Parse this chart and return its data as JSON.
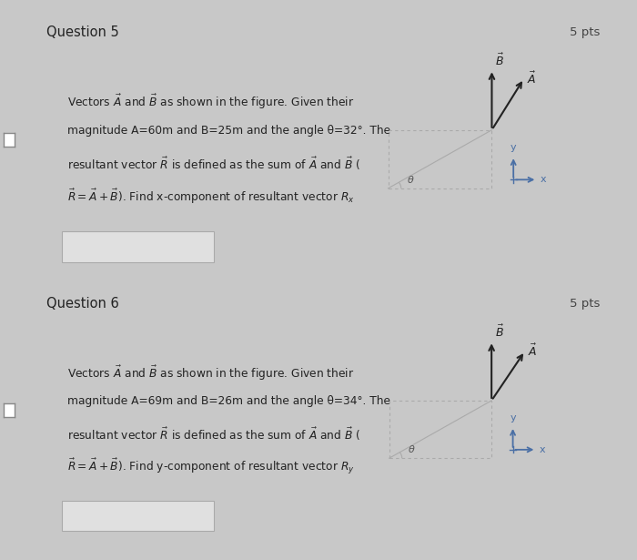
{
  "bg_color": "#c8c8c8",
  "card_bg": "#e8e8e8",
  "title_bg": "#d8d8d8",
  "white_bg": "#f5f5f5",
  "ans_box_bg": "#e0e0e0",
  "vec_color": "#222222",
  "axis_color": "#4a6fa5",
  "dash_color": "#aaaaaa",
  "q1": {
    "title": "Question 5",
    "pts": "5 pts",
    "lines": [
      "Vectors $\\vec{A}$ and $\\vec{B}$ as shown in the figure. Given their",
      "magnitude A=60m and B=25m and the angle θ=32°. The",
      "resultant vector $\\vec{R}$ is defined as the sum of $\\vec{A}$ and $\\vec{B}$ (",
      "$\\vec{R} = \\vec{A} + \\vec{B}$). Find x-component of resultant vector $R_x$"
    ],
    "theta": 32
  },
  "q2": {
    "title": "Question 6",
    "pts": "5 pts",
    "lines": [
      "Vectors $\\vec{A}$ and $\\vec{B}$ as shown in the figure. Given their",
      "magnitude A=69m and B=26m and the angle θ=34°. The",
      "resultant vector $\\vec{R}$ is defined as the sum of $\\vec{A}$ and $\\vec{B}$ (",
      "$\\vec{R} = \\vec{A} + \\vec{B}$). Find y-component of resultant vector $R_y$"
    ],
    "theta": 34
  }
}
